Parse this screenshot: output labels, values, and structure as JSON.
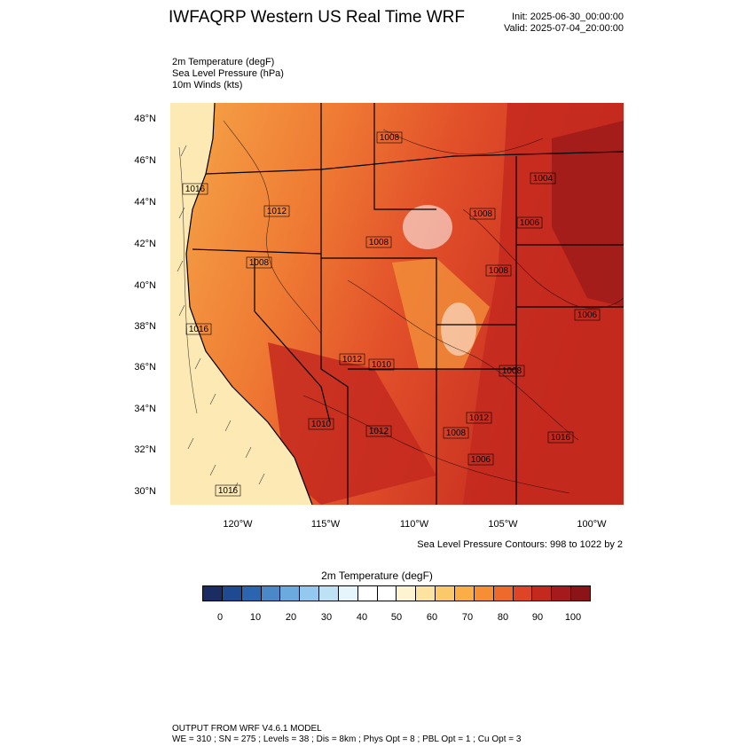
{
  "header": {
    "title": "IWFAQRP Western US Real Time WRF",
    "init": "Init: 2025-06-30_00:00:00",
    "valid": "Valid: 2025-07-04_20:00:00"
  },
  "fields": {
    "line1": "2m Temperature   (degF)",
    "line2": "Sea Level Pressure   (hPa)",
    "line3": "10m Winds   (kts)"
  },
  "map": {
    "lat_labels": [
      "48°N",
      "46°N",
      "44°N",
      "42°N",
      "40°N",
      "38°N",
      "36°N",
      "34°N",
      "32°N",
      "30°N"
    ],
    "lon_labels": [
      "120°W",
      "115°W",
      "110°W",
      "105°W",
      "100°W"
    ],
    "pressure_labels": [
      "1008",
      "1016",
      "1012",
      "1008",
      "1006",
      "1016",
      "1008",
      "1008",
      "1006",
      "1008",
      "1008",
      "1010",
      "1012",
      "1012",
      "1010",
      "1012",
      "1016",
      "1004",
      "1008",
      "1006",
      "1016"
    ],
    "colors": {
      "ocean": "#fce9b4",
      "hot": "#c0221f",
      "very_hot": "#9b1a1a",
      "warm": "#e8562b",
      "mild": "#f59a3c",
      "cool": "#fbc86b",
      "cold": "#ffffff"
    }
  },
  "slp_note": "Sea Level Pressure Contours: 998 to 1022 by 2",
  "colorbar": {
    "title": "2m Temperature  (degF)",
    "labels": [
      "0",
      "10",
      "20",
      "30",
      "40",
      "50",
      "60",
      "70",
      "80",
      "90",
      "100"
    ],
    "colors": [
      "#1b2c62",
      "#1f4a91",
      "#2b65b0",
      "#4a88c7",
      "#6aaadf",
      "#93c8ef",
      "#bfe1f6",
      "#e6f4fb",
      "#ffffff",
      "#ffffff",
      "#fef4d1",
      "#fde3a0",
      "#fcc96a",
      "#fbae45",
      "#f68e34",
      "#ee6a2b",
      "#dd4526",
      "#c4291e",
      "#a51a1c",
      "#8b1418"
    ]
  },
  "footer": {
    "line1": "OUTPUT FROM WRF V4.6.1 MODEL",
    "line2": "WE = 310 ; SN = 275 ; Levels = 38 ; Dis = 8km ; Phys Opt = 8 ; PBL Opt = 1 ; Cu Opt = 3"
  }
}
